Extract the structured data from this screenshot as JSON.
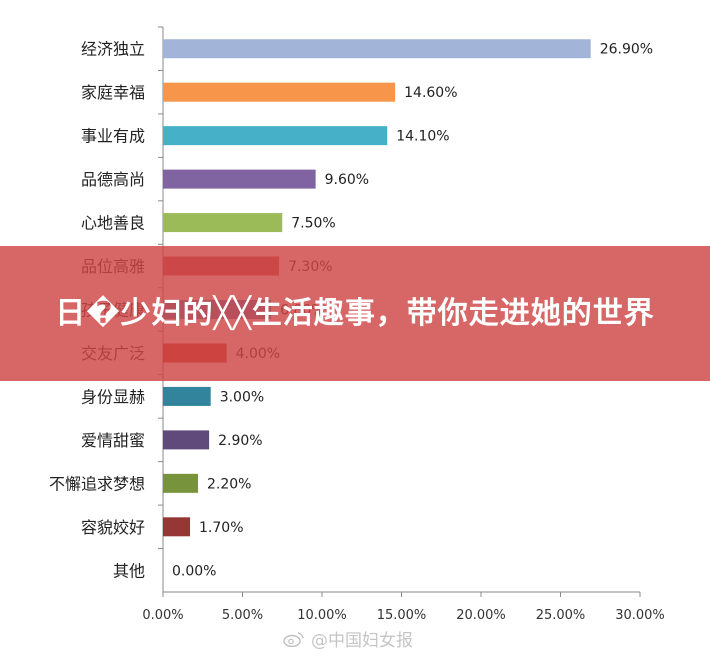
{
  "chart_data": {
    "type": "bar",
    "orientation": "horizontal",
    "categories": [
      "经济独立",
      "家庭幸福",
      "事业有成",
      "品德高尚",
      "心地善良",
      "品位高雅",
      "孩子健康",
      "交友广泛",
      "身份显赫",
      "爱情甜蜜",
      "不懈追求梦想",
      "容貌姣好",
      "其他"
    ],
    "values": [
      26.9,
      14.6,
      14.1,
      9.6,
      7.5,
      7.3,
      6.8,
      4.0,
      3.0,
      2.9,
      2.2,
      1.7,
      0.0
    ],
    "value_labels": [
      "26.90%",
      "14.60%",
      "14.10%",
      "9.60%",
      "7.50%",
      "7.30%",
      "6.80%",
      "4.00%",
      "3.00%",
      "2.90%",
      "2.20%",
      "1.70%",
      "0.00%"
    ],
    "colors": [
      "#a3b4d9",
      "#f7954a",
      "#45b0c7",
      "#8064a2",
      "#9bbb59",
      "#c0504d",
      "#4f81bd",
      "#c0392b",
      "#31849b",
      "#604a7b",
      "#77933c",
      "#953735",
      "#4f81bd"
    ],
    "xlim": [
      0,
      30
    ],
    "xticks": [
      "0.00%",
      "5.00%",
      "10.00%",
      "15.00%",
      "20.00%",
      "25.00%",
      "30.00%"
    ],
    "grid": false,
    "title": "",
    "xlabel": "",
    "ylabel": ""
  },
  "overlay": {
    "title": "日�少妇的╳╳生活趣事，带你走进她的世界"
  },
  "watermark": {
    "text": "@中国妇女报",
    "icon": "weibo-icon"
  }
}
